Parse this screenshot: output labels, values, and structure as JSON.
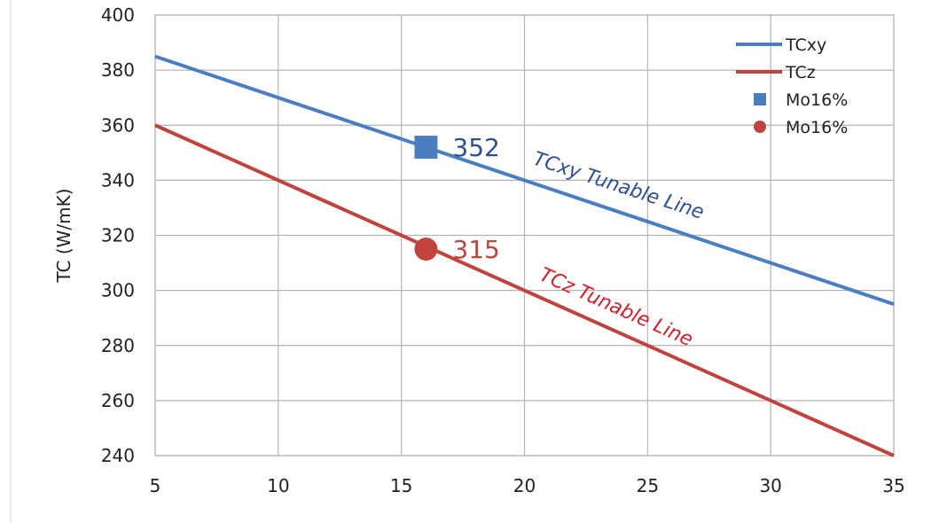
{
  "chart_data": {
    "type": "line",
    "title": "",
    "xlabel": "",
    "ylabel": "TC  (W/mK)",
    "xlim": [
      5,
      35
    ],
    "ylim": [
      240,
      400
    ],
    "xticks": [
      5,
      10,
      15,
      20,
      25,
      30,
      35
    ],
    "yticks": [
      240,
      260,
      280,
      300,
      320,
      340,
      360,
      380,
      400
    ],
    "grid": true,
    "legend_position": "top-right",
    "series": [
      {
        "name": "TCxy",
        "kind": "line",
        "color": "#4a7ebf",
        "x": [
          5,
          35
        ],
        "y": [
          385,
          295
        ]
      },
      {
        "name": "TCz",
        "kind": "line",
        "color": "#c0443e",
        "x": [
          5,
          35
        ],
        "y": [
          360,
          240
        ]
      },
      {
        "name": "Mo16%",
        "kind": "marker",
        "marker": "square",
        "color": "#4a7ebf",
        "x": [
          16
        ],
        "y": [
          352
        ]
      },
      {
        "name": "Mo16%",
        "kind": "marker",
        "marker": "circle",
        "color": "#c0443e",
        "x": [
          16
        ],
        "y": [
          315
        ]
      }
    ],
    "annotations": [
      {
        "text": "352",
        "color": "#2f4f8f",
        "x": 16,
        "y": 352
      },
      {
        "text": "315",
        "color": "#c0443e",
        "x": 16,
        "y": 315
      },
      {
        "text": "TCxy Tunable Line",
        "color": "#2f4f8f",
        "x": 22,
        "y": 336
      },
      {
        "text": "TCz Tunable Line",
        "color": "#d0202a",
        "x": 22,
        "y": 298
      }
    ]
  }
}
